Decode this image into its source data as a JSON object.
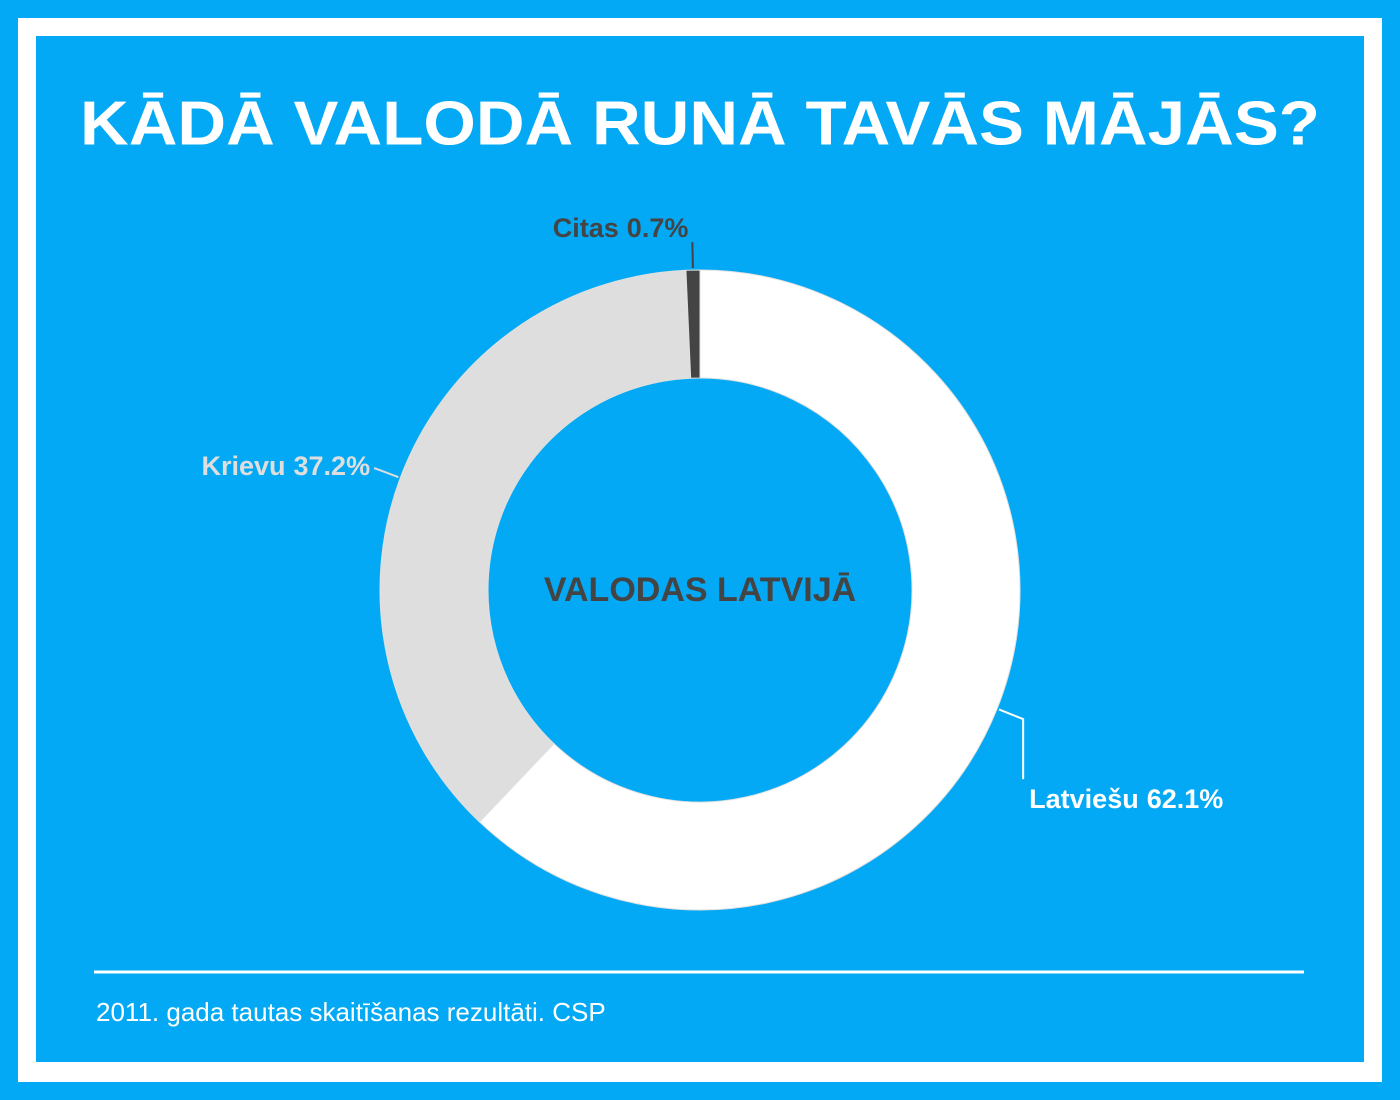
{
  "chart_data": {
    "type": "donut",
    "title": "KĀDĀ VALODĀ RUNĀ TAVĀS MĀJĀS?",
    "center_label": "VALODAS LATVIJĀ",
    "categories": [
      "Latviešu",
      "Krievu",
      "Citas"
    ],
    "values": [
      62.1,
      37.2,
      0.7
    ],
    "value_labels": [
      "62.1%",
      "37.2%",
      "0.7%"
    ],
    "colors": [
      "#ffffff",
      "#dedede",
      "#444444"
    ],
    "source": "2011. gada tautas skaitīšanas rezultāti. CSP"
  }
}
